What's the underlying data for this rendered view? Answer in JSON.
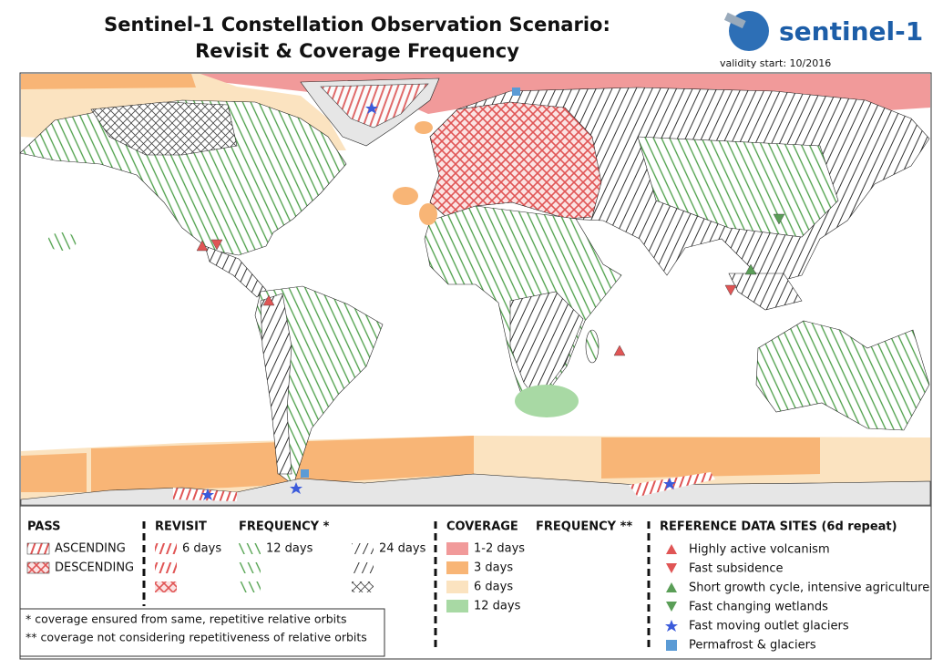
{
  "header": {
    "title_line1": "Sentinel-1 Constellation Observation Scenario:",
    "title_line2": "Revisit & Coverage Frequency",
    "logo_text": "sentinel-1",
    "validity": "validity start: 10/2016"
  },
  "legend": {
    "pass": {
      "title": "PASS",
      "items": [
        "ASCENDING",
        "DESCENDING"
      ]
    },
    "revisit": {
      "title": "REVISIT",
      "items": [
        "6 days"
      ]
    },
    "frequency": {
      "title": "FREQUENCY *",
      "items": [
        "12 days",
        "24 days"
      ]
    },
    "coverage": {
      "title": "COVERAGE",
      "frequency_title": "FREQUENCY  **",
      "items": [
        "1-2 days",
        "3    days",
        "6    days",
        "12  days"
      ]
    },
    "reference": {
      "title": "REFERENCE DATA SITES (6d repeat)",
      "items": [
        "Highly active volcanism",
        "Fast subsidence",
        "Short growth cycle, intensive agriculture",
        "Fast changing wetlands",
        "Fast moving outlet glaciers",
        "Permafrost & glaciers"
      ]
    },
    "notes": [
      "*   coverage ensured from same, repetitive relative orbits",
      "** coverage not considering repetitiveness of relative orbits"
    ]
  }
}
